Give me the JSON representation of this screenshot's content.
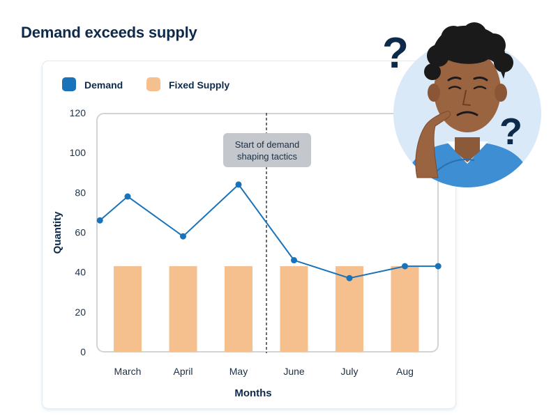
{
  "page": {
    "title": "Demand exceeds supply"
  },
  "chart_data": {
    "type": "bar",
    "categories": [
      "March",
      "April",
      "May",
      "June",
      "July",
      "Aug"
    ],
    "series": [
      {
        "name": "Demand",
        "type": "line",
        "color": "#1a73b8",
        "x": [
          0,
          0.5,
          1.5,
          2.5,
          3.5,
          4.5,
          5.5,
          6.1
        ],
        "values": [
          66,
          78,
          58,
          84,
          46,
          37,
          43,
          43
        ]
      },
      {
        "name": "Fixed Supply",
        "type": "bar",
        "color": "#f6bf8e",
        "values": [
          43,
          43,
          43,
          43,
          43,
          43
        ]
      }
    ],
    "xlabel": "Months",
    "ylabel": "Quantity",
    "ylim": [
      0,
      120
    ],
    "yticks": [
      0,
      20,
      40,
      60,
      80,
      100,
      120
    ],
    "legend_position": "top-left",
    "grid": false,
    "annotation": {
      "lines": [
        "Start of demand",
        "shaping tactics"
      ],
      "position": "between May and June"
    }
  },
  "illustration": {
    "name": "confused-person-icon",
    "marks": [
      "?",
      "?"
    ]
  }
}
